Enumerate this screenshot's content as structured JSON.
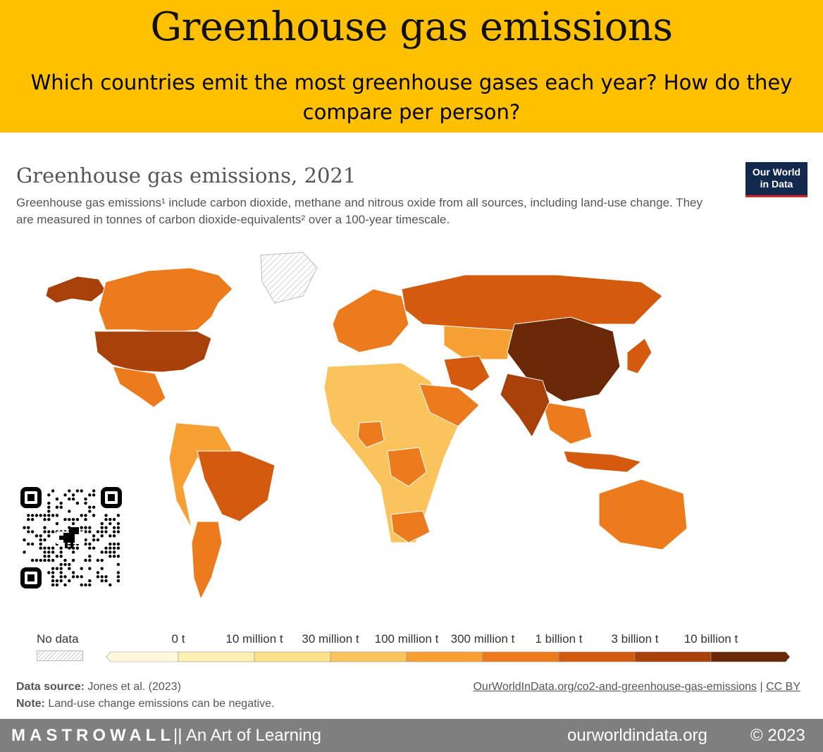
{
  "banner": {
    "title": "Greenhouse gas emissions",
    "subtitle": "Which countries emit the most greenhouse gases each year? How do they compare per person?"
  },
  "chart": {
    "title": "Greenhouse gas emissions, 2021",
    "description": "Greenhouse gas emissions¹ include carbon dioxide, methane and nitrous oxide from all sources, including land-use change. They are measured in tonnes of carbon dioxide-equivalents² over a 100-year timescale.",
    "logo_line1": "Our World",
    "logo_line2": "in Data"
  },
  "legend": {
    "no_data": "No data",
    "bins": [
      {
        "label": "",
        "color": "#fff8dc"
      },
      {
        "label": "0 t",
        "color": "#feefb2"
      },
      {
        "label": "10 million t",
        "color": "#fde08a"
      },
      {
        "label": "30 million t",
        "color": "#fbc35c"
      },
      {
        "label": "100 million t",
        "color": "#f7a033"
      },
      {
        "label": "300 million t",
        "color": "#ec7b1e"
      },
      {
        "label": "1 billion t",
        "color": "#d45a10"
      },
      {
        "label": "3 billion t",
        "color": "#a8400a"
      },
      {
        "label": "10 billion t",
        "color": "#6b2806"
      }
    ]
  },
  "colors": {
    "banner": "#ffc000",
    "ocean": "#ffffff",
    "border": "#ffffff"
  },
  "chart_data": {
    "type": "map",
    "title": "Greenhouse gas emissions, 2021",
    "regions": [
      {
        "name": "Alaska",
        "bin": 7
      },
      {
        "name": "Canada",
        "bin": 5
      },
      {
        "name": "United States",
        "bin": 7
      },
      {
        "name": "Mexico",
        "bin": 5
      },
      {
        "name": "Greenland",
        "bin": -1
      },
      {
        "name": "Brazil",
        "bin": 6
      },
      {
        "name": "Argentina",
        "bin": 5
      },
      {
        "name": "Europe",
        "bin": 5
      },
      {
        "name": "Russia",
        "bin": 6
      },
      {
        "name": "China",
        "bin": 8
      },
      {
        "name": "India",
        "bin": 7
      },
      {
        "name": "Iran",
        "bin": 6
      },
      {
        "name": "Saudi Arabia",
        "bin": 5
      },
      {
        "name": "Indonesia",
        "bin": 6
      },
      {
        "name": "Australia",
        "bin": 5
      },
      {
        "name": "Japan",
        "bin": 6
      },
      {
        "name": "South Africa",
        "bin": 5
      },
      {
        "name": "Nigeria",
        "bin": 5
      },
      {
        "name": "DR Congo",
        "bin": 5
      }
    ]
  },
  "footer": {
    "source_label": "Data source:",
    "source_text": " Jones et al. (2023)",
    "note_label": "Note:",
    "note_text": " Land-use change emissions can be negative.",
    "link": "OurWorldInData.org/co2-and-greenhouse-gas-emissions",
    "sep": " | ",
    "license": "CC BY"
  },
  "bottom_bar": {
    "brand": "MASTROWALL",
    "tagline": "|| An Art of Learning",
    "site": "ourworldindata.org",
    "copyright": "© 2023"
  }
}
